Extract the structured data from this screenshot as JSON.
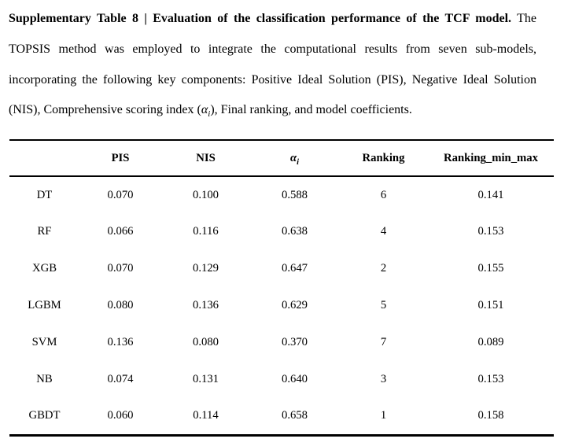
{
  "caption": {
    "line1_bold": "Supplementary Table 8 | Evaluation of the classification performance of the TCF model.",
    "line1_rest": " The",
    "line2": "TOPSIS method was employed to integrate the computational results from seven sub-models,",
    "line3": "incorporating the following key components: Positive Ideal Solution (PIS), Negative Ideal Solution",
    "line4_pre": "(NIS), Comprehensive scoring index (",
    "alpha_symbol": "α",
    "alpha_subscript": "i",
    "line4_post": "), Final ranking, and model coefficients."
  },
  "table": {
    "headers": {
      "model": "",
      "pis": "PIS",
      "nis": "NIS",
      "alpha_symbol": "α",
      "alpha_subscript": "i",
      "ranking": "Ranking",
      "ranking_min_max": "Ranking_min_max"
    },
    "rows": [
      {
        "model": "DT",
        "pis": "0.070",
        "nis": "0.100",
        "alpha": "0.588",
        "ranking": "6",
        "ranking_min_max": "0.141"
      },
      {
        "model": "RF",
        "pis": "0.066",
        "nis": "0.116",
        "alpha": "0.638",
        "ranking": "4",
        "ranking_min_max": "0.153"
      },
      {
        "model": "XGB",
        "pis": "0.070",
        "nis": "0.129",
        "alpha": "0.647",
        "ranking": "2",
        "ranking_min_max": "0.155"
      },
      {
        "model": "LGBM",
        "pis": "0.080",
        "nis": "0.136",
        "alpha": "0.629",
        "ranking": "5",
        "ranking_min_max": "0.151"
      },
      {
        "model": "SVM",
        "pis": "0.136",
        "nis": "0.080",
        "alpha": "0.370",
        "ranking": "7",
        "ranking_min_max": "0.089"
      },
      {
        "model": "NB",
        "pis": "0.074",
        "nis": "0.131",
        "alpha": "0.640",
        "ranking": "3",
        "ranking_min_max": "0.153"
      },
      {
        "model": "GBDT",
        "pis": "0.060",
        "nis": "0.114",
        "alpha": "0.658",
        "ranking": "1",
        "ranking_min_max": "0.158"
      }
    ],
    "colors": {
      "text": "#000000",
      "rule": "#000000",
      "background": "#ffffff"
    }
  }
}
